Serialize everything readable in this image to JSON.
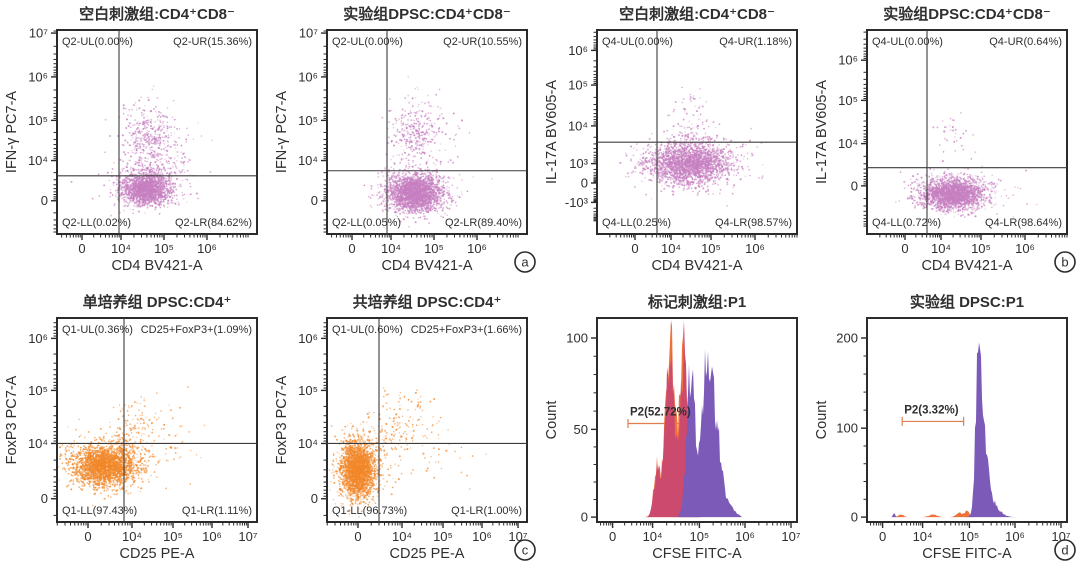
{
  "figure_name": "flow-cytometry-8-panel-figure",
  "colors": {
    "background": "#ffffff",
    "text": "#2f2f2f",
    "axis": "#2b2b2b",
    "gate_line": "#3c3c3c",
    "plum_dots": "#c67fc0",
    "orange_dots": "#f1882b",
    "hist_orange": "#f0703a",
    "hist_crimson": "#cb4a6e",
    "hist_purple": "#7b5ab8",
    "gate_label": "#e07e52"
  },
  "chart_data": [
    {
      "type": "scatter",
      "title": "空白刺激组:CD4⁺CD8⁻",
      "badge": "",
      "x_axis": {
        "label": "CD4 BV421-A",
        "scale": "logicle",
        "ticks": [
          [
            "0",
            0.125
          ],
          [
            "10⁴",
            0.32
          ],
          [
            "10⁵",
            0.535
          ],
          [
            "10⁶",
            0.75
          ]
        ]
      },
      "y_axis": {
        "label": "IFN-γ PC7-A",
        "scale": "logicle",
        "ticks": [
          [
            "10⁷",
            0.015
          ],
          [
            "10⁶",
            0.23
          ],
          [
            "10⁵",
            0.443
          ],
          [
            "10⁴",
            0.64
          ],
          [
            "0",
            0.837
          ]
        ]
      },
      "gate": {
        "vx": 0.31,
        "hy": 0.715
      },
      "quadrants": {
        "ul": "Q2-UL(0.00%)",
        "ur": "Q2-UR(15.36%)",
        "ll": "Q2-LL(0.02%)",
        "lr": "Q2-LR(84.62%)"
      },
      "dot_color_key": "plum_dots",
      "clusters": [
        [
          0.445,
          0.78,
          0.06,
          0.04,
          1700
        ],
        [
          0.46,
          0.76,
          0.1,
          0.06,
          250
        ],
        [
          0.455,
          0.53,
          0.06,
          0.075,
          330
        ],
        [
          0.5,
          0.52,
          0.1,
          0.1,
          90
        ],
        [
          0.52,
          0.68,
          0.1,
          0.05,
          80
        ]
      ]
    },
    {
      "type": "scatter",
      "title": "实验组DPSC:CD4⁺CD8⁻",
      "badge": "a",
      "x_axis": {
        "label": "CD4 BV421-A",
        "scale": "logicle",
        "ticks": [
          [
            "0",
            0.125
          ],
          [
            "10⁴",
            0.32
          ],
          [
            "10⁵",
            0.535
          ],
          [
            "10⁶",
            0.75
          ]
        ]
      },
      "y_axis": {
        "label": "IFN-γ PC7-A",
        "scale": "logicle",
        "ticks": [
          [
            "10⁷",
            0.015
          ],
          [
            "10⁶",
            0.23
          ],
          [
            "10⁵",
            0.443
          ],
          [
            "10⁴",
            0.64
          ],
          [
            "0",
            0.837
          ]
        ]
      },
      "gate": {
        "vx": 0.3,
        "hy": 0.69
      },
      "quadrants": {
        "ul": "Q2-UL(0.00%)",
        "ur": "Q2-UR(10.55%)",
        "ll": "Q2-LL(0.05%)",
        "lr": "Q2-LR(89.40%)"
      },
      "dot_color_key": "plum_dots",
      "clusters": [
        [
          0.44,
          0.8,
          0.065,
          0.045,
          2300
        ],
        [
          0.46,
          0.78,
          0.1,
          0.06,
          300
        ],
        [
          0.44,
          0.5,
          0.055,
          0.07,
          260
        ],
        [
          0.49,
          0.52,
          0.09,
          0.1,
          80
        ]
      ]
    },
    {
      "type": "scatter",
      "title": "空白刺激组:CD4⁺CD8⁻",
      "badge": "",
      "x_axis": {
        "label": "CD4 BV421-A",
        "scale": "logicle",
        "ticks": [
          [
            "0",
            0.19
          ],
          [
            "10⁴",
            0.37
          ],
          [
            "10⁵",
            0.57
          ],
          [
            "10⁶",
            0.79
          ]
        ]
      },
      "y_axis": {
        "label": "IL-17A BV605-A",
        "scale": "logicle",
        "ticks": [
          [
            "10⁶",
            0.1
          ],
          [
            "10⁵",
            0.27
          ],
          [
            "10⁴",
            0.47
          ],
          [
            "10³",
            0.655
          ],
          [
            "0",
            0.75
          ],
          [
            "-10³",
            0.845
          ]
        ]
      },
      "gate": {
        "vx": 0.3,
        "hy": 0.55
      },
      "quadrants": {
        "ul": "Q4-UL(0.00%)",
        "ur": "Q4-UR(1.18%)",
        "ll": "Q4-LL(0.25%)",
        "lr": "Q4-LR(98.57%)"
      },
      "dot_color_key": "plum_dots",
      "clusters": [
        [
          0.46,
          0.655,
          0.1,
          0.05,
          2200
        ],
        [
          0.48,
          0.64,
          0.14,
          0.07,
          250
        ],
        [
          0.47,
          0.48,
          0.06,
          0.05,
          60
        ],
        [
          0.47,
          0.37,
          0.05,
          0.05,
          25
        ]
      ]
    },
    {
      "type": "scatter",
      "title": "实验组DPSC:CD4⁺CD8⁻",
      "badge": "b",
      "x_axis": {
        "label": "CD4 BV421-A",
        "scale": "logicle",
        "ticks": [
          [
            "0",
            0.19
          ],
          [
            "10⁴",
            0.37
          ],
          [
            "10⁵",
            0.57
          ],
          [
            "10⁶",
            0.79
          ]
        ]
      },
      "y_axis": {
        "label": "IL-17A BV605-A",
        "scale": "logicle",
        "ticks": [
          [
            "10⁶",
            0.148
          ],
          [
            "10⁵",
            0.345
          ],
          [
            "10⁴",
            0.557
          ],
          [
            "0",
            0.764
          ]
        ]
      },
      "gate": {
        "vx": 0.3,
        "hy": 0.675
      },
      "quadrants": {
        "ul": "Q4-UL(0.00%)",
        "ur": "Q4-UR(0.64%)",
        "ll": "Q4-LL(0.72%)",
        "lr": "Q4-LR(98.64%)"
      },
      "dot_color_key": "plum_dots",
      "clusters": [
        [
          0.43,
          0.805,
          0.08,
          0.038,
          2100
        ],
        [
          0.45,
          0.79,
          0.12,
          0.05,
          220
        ],
        [
          0.43,
          0.52,
          0.05,
          0.08,
          35
        ]
      ]
    },
    {
      "type": "scatter",
      "title": "单培养组 DPSC:CD4⁺",
      "badge": "",
      "x_axis": {
        "label": "CD25 PE-A",
        "scale": "logicle",
        "ticks": [
          [
            "0",
            0.155
          ],
          [
            "10⁴",
            0.375
          ],
          [
            "10⁵",
            0.58
          ],
          [
            "10⁶",
            0.775
          ],
          [
            "10⁷",
            0.955
          ]
        ]
      },
      "y_axis": {
        "label": "FoxP3 PC7-A",
        "scale": "logicle",
        "ticks": [
          [
            "10⁶",
            0.1
          ],
          [
            "10⁵",
            0.355
          ],
          [
            "10⁴",
            0.615
          ],
          [
            "0",
            0.886
          ]
        ]
      },
      "gate": {
        "vx": 0.335,
        "hy": 0.615
      },
      "quadrants": {
        "ul": "Q1-UL(0.36%)",
        "ur": "CD25+FoxP3+(1.09%)",
        "ll": "Q1-LL(97.43%)",
        "lr": "Q1-LR(1.11%)"
      },
      "dot_color_key": "orange_dots",
      "clusters": [
        [
          0.235,
          0.725,
          0.08,
          0.048,
          2400
        ],
        [
          0.25,
          0.7,
          0.11,
          0.08,
          220
        ],
        [
          0.33,
          0.62,
          0.05,
          0.05,
          80
        ],
        [
          0.4,
          0.52,
          0.07,
          0.07,
          90
        ],
        [
          0.56,
          0.6,
          0.09,
          0.09,
          45
        ]
      ]
    },
    {
      "type": "scatter",
      "title": "共培养组 DPSC:CD4⁺",
      "badge": "c",
      "x_axis": {
        "label": "CD25 PE-A",
        "scale": "logicle",
        "ticks": [
          [
            "0",
            0.155
          ],
          [
            "10⁴",
            0.375
          ],
          [
            "10⁵",
            0.58
          ],
          [
            "10⁶",
            0.775
          ],
          [
            "10⁷",
            0.955
          ]
        ]
      },
      "y_axis": {
        "label": "FoxP3 PC7-A",
        "scale": "logicle",
        "ticks": [
          [
            "10⁶",
            0.1
          ],
          [
            "10⁵",
            0.355
          ],
          [
            "10⁴",
            0.615
          ],
          [
            "0",
            0.886
          ]
        ]
      },
      "gate": {
        "vx": 0.26,
        "hy": 0.615
      },
      "quadrants": {
        "ul": "Q1-UL(0.60%)",
        "ur": "CD25+FoxP3+(1.66%)",
        "ll": "Q1-LL(96.73%)",
        "lr": "Q1-LR(1.00%)"
      },
      "dot_color_key": "orange_dots",
      "clusters": [
        [
          0.155,
          0.745,
          0.042,
          0.068,
          2400
        ],
        [
          0.175,
          0.72,
          0.075,
          0.085,
          250
        ],
        [
          0.33,
          0.55,
          0.09,
          0.08,
          130
        ],
        [
          0.45,
          0.44,
          0.07,
          0.06,
          40
        ],
        [
          0.55,
          0.7,
          0.1,
          0.06,
          25
        ]
      ]
    },
    {
      "type": "histogram",
      "title": "标记刺激组:P1",
      "badge": "",
      "x_axis": {
        "label": "CFSE FITC-A",
        "scale": "logicle",
        "ticks": [
          [
            "0",
            0.078
          ],
          [
            "10⁴",
            0.278
          ],
          [
            "10⁵",
            0.512
          ],
          [
            "10⁶",
            0.74
          ],
          [
            "10⁷",
            0.97
          ]
        ]
      },
      "y_axis": {
        "label": "Count",
        "scale": "linear",
        "ticks": [
          [
            "100",
            0.098
          ],
          [
            "50",
            0.546
          ],
          [
            "0",
            0.976
          ]
        ]
      },
      "yscale": {
        "f0": 0.976,
        "k": 0.00878
      },
      "series": [
        {
          "fill": "hist_crimson",
          "edge": "hist_orange",
          "peaks": [
            [
              0.3,
              26,
              0.016
            ],
            [
              0.365,
              92,
              0.022
            ],
            [
              0.435,
              91,
              0.02
            ]
          ],
          "range": [
            0.245,
            0.525
          ]
        },
        {
          "fill": "hist_purple",
          "peaks": [
            [
              0.468,
              80,
              0.02
            ],
            [
              0.552,
              86,
              0.03
            ],
            [
              0.605,
              28,
              0.022
            ],
            [
              0.655,
              7,
              0.03
            ]
          ],
          "range": [
            0.41,
            0.72
          ]
        }
      ],
      "gate_marker": {
        "label": "P2(52.72%)",
        "x1": 0.155,
        "x2": 0.43,
        "fy": 0.517,
        "ends": "left"
      }
    },
    {
      "type": "histogram",
      "title": "实验组 DPSC:P1",
      "badge": "d",
      "x_axis": {
        "label": "CFSE FITC-A",
        "scale": "logicle",
        "ticks": [
          [
            "0",
            0.078
          ],
          [
            "10⁴",
            0.278
          ],
          [
            "10⁵",
            0.512
          ],
          [
            "10⁶",
            0.74
          ],
          [
            "10⁷",
            0.97
          ]
        ]
      },
      "y_axis": {
        "label": "Count",
        "scale": "linear",
        "ticks": [
          [
            "200",
            0.098
          ],
          [
            "100",
            0.54
          ],
          [
            "0",
            0.976
          ]
        ]
      },
      "yscale": {
        "f0": 0.976,
        "k": 0.00439
      },
      "series": [
        {
          "fill": "hist_orange",
          "peaks": [
            [
              0.17,
              3,
              0.012
            ],
            [
              0.33,
              3,
              0.02
            ],
            [
              0.46,
              5,
              0.015
            ],
            [
              0.5,
              7,
              0.012
            ]
          ],
          "range": null
        },
        {
          "fill": "hist_purple",
          "peaks": [
            [
              0.135,
              5,
              0.005
            ],
            [
              0.558,
              172,
              0.013
            ],
            [
              0.578,
              80,
              0.022
            ],
            [
              0.61,
              18,
              0.03
            ],
            [
              0.655,
              4,
              0.03
            ]
          ],
          "range": null
        }
      ],
      "gate_marker": {
        "label": "P2(3.32%)",
        "x1": 0.176,
        "x2": 0.483,
        "fy": 0.507,
        "ends": "both"
      }
    }
  ]
}
